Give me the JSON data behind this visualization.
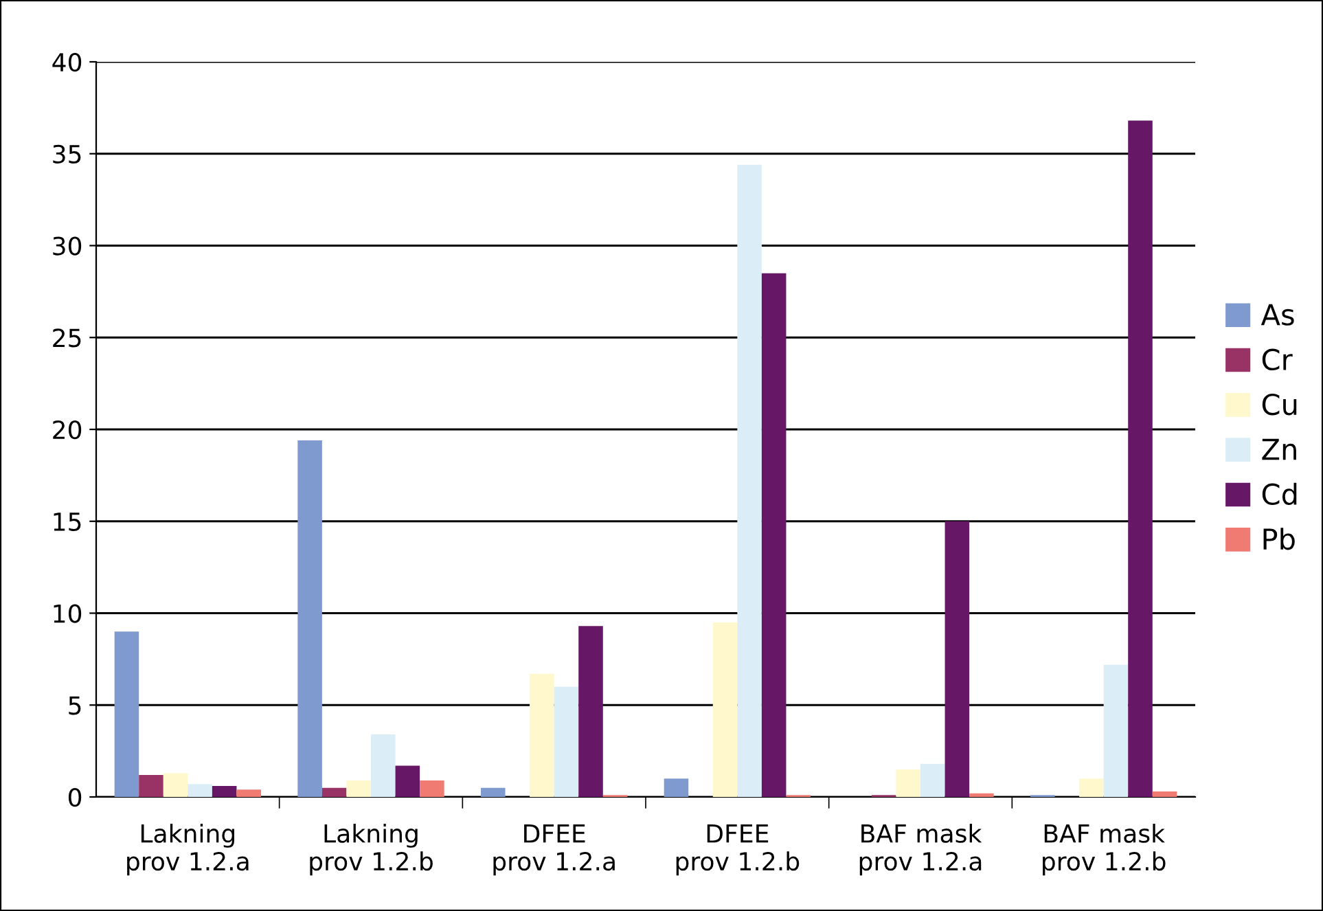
{
  "chart_data": {
    "type": "bar",
    "categories": [
      "Lakning\nprov 1.2.a",
      "Lakning\nprov 1.2.b",
      "DFEE\nprov 1.2.a",
      "DFEE\nprov 1.2.b",
      "BAF mask\nprov 1.2.a",
      "BAF mask\nprov 1.2.b"
    ],
    "series": [
      {
        "name": "As",
        "color": "#7f9acf",
        "values": [
          9.0,
          19.4,
          0.5,
          1.0,
          0,
          0.1
        ]
      },
      {
        "name": "Cr",
        "color": "#993366",
        "values": [
          1.2,
          0.5,
          0,
          0,
          0.1,
          0
        ]
      },
      {
        "name": "Cu",
        "color": "#fff8cc",
        "values": [
          1.3,
          0.9,
          6.7,
          9.5,
          1.5,
          1.0
        ]
      },
      {
        "name": "Zn",
        "color": "#dbeef7",
        "values": [
          0.7,
          3.4,
          6.0,
          34.4,
          1.8,
          7.2
        ]
      },
      {
        "name": "Cd",
        "color": "#661766",
        "values": [
          0.6,
          1.7,
          9.3,
          28.5,
          15.0,
          36.8
        ]
      },
      {
        "name": "Pb",
        "color": "#f07b72",
        "values": [
          0.4,
          0.9,
          0.1,
          0.1,
          0.2,
          0.3
        ]
      }
    ],
    "ylim": [
      0,
      40
    ],
    "yticks": [
      0,
      5,
      10,
      15,
      20,
      25,
      30,
      35,
      40
    ],
    "grid": "y",
    "legend": "right"
  }
}
